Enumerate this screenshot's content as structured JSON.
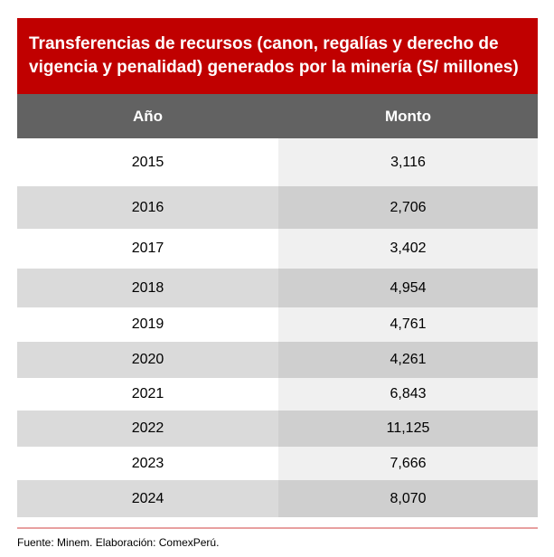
{
  "title": "Transferencias de recursos (canon, regalías y derecho de vigencia y penalidad) generados por la minería (S/ millones)",
  "headers": {
    "year": "Año",
    "amount": "Monto"
  },
  "rows": [
    {
      "year": "2015",
      "amount": "3,116"
    },
    {
      "year": "2016",
      "amount": "2,706"
    },
    {
      "year": "2017",
      "amount": "3,402"
    },
    {
      "year": "2018",
      "amount": "4,954"
    },
    {
      "year": "2019",
      "amount": "4,761"
    },
    {
      "year": "2020",
      "amount": "4,261"
    },
    {
      "year": "2021",
      "amount": "6,843"
    },
    {
      "year": "2022",
      "amount": "11,125"
    },
    {
      "year": "2023",
      "amount": "7,666"
    },
    {
      "year": "2024",
      "amount": "8,070"
    }
  ],
  "source": "Fuente: Minem. Elaboración: ComexPerú."
}
